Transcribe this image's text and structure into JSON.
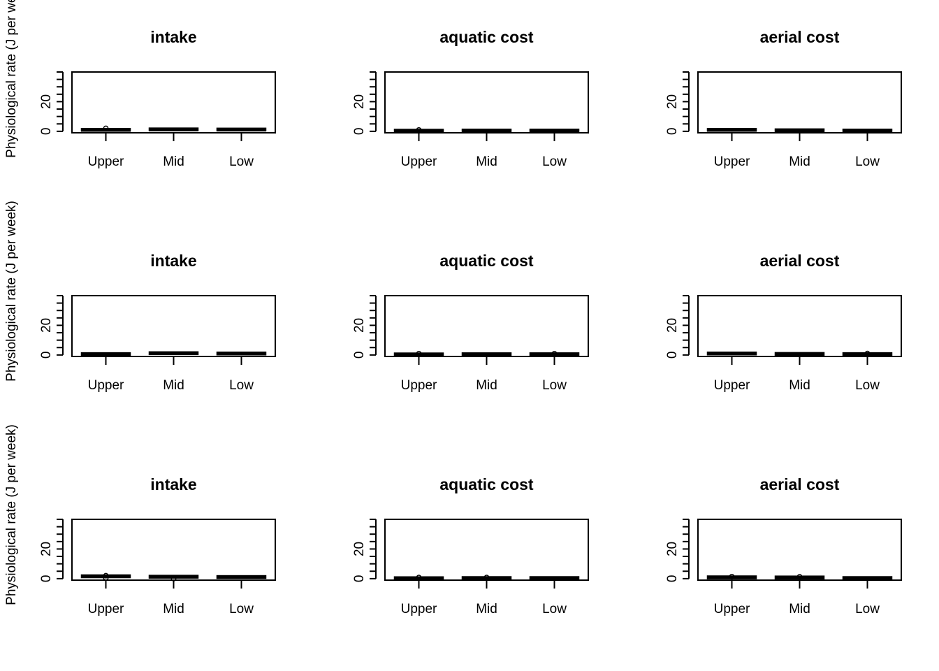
{
  "chart_data": [
    {
      "type": "boxplot",
      "title": "intake",
      "ylabel": "Physiological rate (J per week)",
      "ylim": [
        -1,
        40
      ],
      "yticks": [
        0,
        20
      ],
      "categories": [
        "Upper",
        "Mid",
        "Low"
      ],
      "medians": [
        1.0,
        1.3,
        1.2
      ],
      "outliers": [
        [
          2.0
        ],
        [],
        []
      ]
    },
    {
      "type": "boxplot",
      "title": "aquatic cost",
      "ylabel": "",
      "ylim": [
        -1,
        40
      ],
      "yticks": [
        0,
        20
      ],
      "categories": [
        "Upper",
        "Mid",
        "Low"
      ],
      "medians": [
        0.4,
        0.5,
        0.5
      ],
      "outliers": [
        [
          0.9
        ],
        [],
        []
      ]
    },
    {
      "type": "boxplot",
      "title": "aerial cost",
      "ylabel": "",
      "ylim": [
        -1,
        40
      ],
      "yticks": [
        0,
        20
      ],
      "categories": [
        "Upper",
        "Mid",
        "Low"
      ],
      "medians": [
        1.0,
        0.7,
        0.5
      ],
      "outliers": [
        [],
        [],
        []
      ]
    },
    {
      "type": "boxplot",
      "title": "intake",
      "ylabel": "Physiological rate (J per week)",
      "ylim": [
        -1,
        40
      ],
      "yticks": [
        0,
        20
      ],
      "categories": [
        "Upper",
        "Mid",
        "Low"
      ],
      "medians": [
        0.6,
        1.2,
        1.0
      ],
      "outliers": [
        [],
        [],
        []
      ]
    },
    {
      "type": "boxplot",
      "title": "aquatic cost",
      "ylabel": "",
      "ylim": [
        -1,
        40
      ],
      "yticks": [
        0,
        20
      ],
      "categories": [
        "Upper",
        "Mid",
        "Low"
      ],
      "medians": [
        0.4,
        0.5,
        0.5
      ],
      "outliers": [
        [
          0.9
        ],
        [],
        [
          0.9
        ]
      ]
    },
    {
      "type": "boxplot",
      "title": "aerial cost",
      "ylabel": "",
      "ylim": [
        -1,
        40
      ],
      "yticks": [
        0,
        20
      ],
      "categories": [
        "Upper",
        "Mid",
        "Low"
      ],
      "medians": [
        1.0,
        0.7,
        0.6
      ],
      "outliers": [
        [],
        [],
        [
          1.0
        ]
      ]
    },
    {
      "type": "boxplot",
      "title": "intake",
      "ylabel": "Physiological rate (J per week)",
      "ylim": [
        -1,
        40
      ],
      "yticks": [
        0,
        20
      ],
      "categories": [
        "Upper",
        "Mid",
        "Low"
      ],
      "medians": [
        1.6,
        1.3,
        1.1
      ],
      "outliers": [
        [
          2.0,
          0.5
        ],
        [
          0.0
        ],
        []
      ]
    },
    {
      "type": "boxplot",
      "title": "aquatic cost",
      "ylabel": "",
      "ylim": [
        -1,
        40
      ],
      "yticks": [
        0,
        20
      ],
      "categories": [
        "Upper",
        "Mid",
        "Low"
      ],
      "medians": [
        0.3,
        0.4,
        0.4
      ],
      "outliers": [
        [
          0.8
        ],
        [
          0.8
        ],
        []
      ]
    },
    {
      "type": "boxplot",
      "title": "aerial cost",
      "ylabel": "",
      "ylim": [
        -1,
        40
      ],
      "yticks": [
        0,
        20
      ],
      "categories": [
        "Upper",
        "Mid",
        "Low"
      ],
      "medians": [
        0.9,
        0.8,
        0.4
      ],
      "outliers": [
        [
          1.4
        ],
        [
          1.3
        ],
        []
      ]
    }
  ]
}
